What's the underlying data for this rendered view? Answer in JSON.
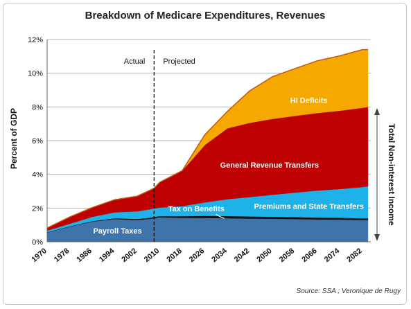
{
  "chart_data": {
    "type": "area",
    "title": "Breakdown of Medicare Expenditures, Revenues",
    "ylabel": "Percent of GDP",
    "right_label": "Total Non-interest Income",
    "source": "Source: SSA ; Veronique de Rugy",
    "phase_labels": {
      "actual": "Actual",
      "projected": "Projected"
    },
    "divider_year": 2008,
    "xlim": [
      1970,
      2085
    ],
    "ylim": [
      0,
      12
    ],
    "x_ticks": [
      1970,
      1978,
      1986,
      1994,
      2002,
      2010,
      2018,
      2026,
      2034,
      2042,
      2050,
      2058,
      2066,
      2074,
      2082
    ],
    "y_ticks": [
      {
        "value": 0,
        "label": "0%"
      },
      {
        "value": 2,
        "label": "2%"
      },
      {
        "value": 4,
        "label": "4%"
      },
      {
        "value": 6,
        "label": "6%"
      },
      {
        "value": 8,
        "label": "8%"
      },
      {
        "value": 10,
        "label": "10%"
      },
      {
        "value": 12,
        "label": "12%"
      }
    ],
    "grid": true,
    "x": [
      1970,
      1978,
      1986,
      1994,
      2002,
      2006,
      2008,
      2010,
      2018,
      2026,
      2034,
      2042,
      2050,
      2058,
      2066,
      2074,
      2082,
      2084
    ],
    "series": [
      {
        "name": "Payroll Taxes",
        "color": "#3f74aa",
        "values": [
          0.55,
          0.9,
          1.2,
          1.35,
          1.3,
          1.35,
          1.4,
          1.45,
          1.42,
          1.42,
          1.4,
          1.38,
          1.37,
          1.35,
          1.33,
          1.32,
          1.3,
          1.3
        ]
      },
      {
        "name": "Tax on Benefits",
        "color": "#111111",
        "values": [
          0.02,
          0.02,
          0.03,
          0.05,
          0.06,
          0.07,
          0.08,
          0.08,
          0.1,
          0.12,
          0.13,
          0.13,
          0.12,
          0.12,
          0.11,
          0.11,
          0.1,
          0.1
        ]
      },
      {
        "name": "Premiums and State Transfers",
        "color": "#1fb2e8",
        "values": [
          0.1,
          0.15,
          0.25,
          0.35,
          0.45,
          0.5,
          0.5,
          0.5,
          0.6,
          0.8,
          1.0,
          1.15,
          1.3,
          1.45,
          1.6,
          1.7,
          1.85,
          1.9
        ]
      },
      {
        "name": "General Revenue Transfers",
        "color": "#bf0000",
        "values": [
          0.15,
          0.4,
          0.55,
          0.75,
          0.9,
          1.1,
          1.2,
          1.5,
          2.1,
          3.4,
          4.2,
          4.4,
          4.5,
          4.55,
          4.6,
          4.65,
          4.7,
          4.7
        ]
      },
      {
        "name": "HI Deficits",
        "color": "#f5a800",
        "values": [
          0,
          0,
          0,
          0,
          0,
          0,
          0,
          0,
          0,
          0.6,
          1.0,
          1.9,
          2.5,
          2.8,
          3.1,
          3.25,
          3.45,
          3.4
        ]
      }
    ]
  }
}
